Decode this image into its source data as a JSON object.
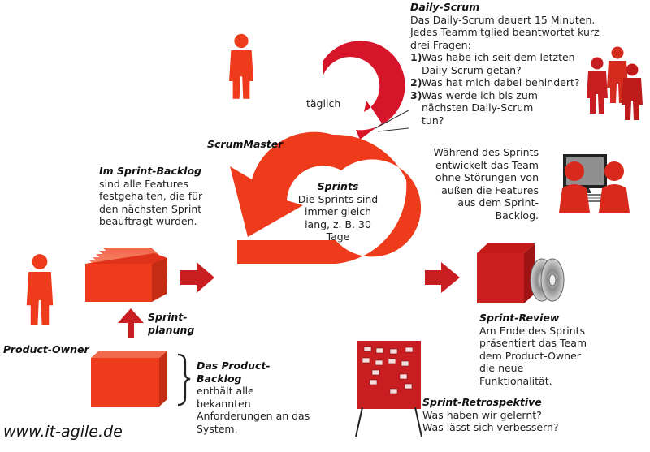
{
  "colors": {
    "accent": "#ee3b1c",
    "dark_red": "#c81e22",
    "loop_red": "#d6142a",
    "grey": "#9a9a9a"
  },
  "daily_scrum": {
    "title": "Daily-Scrum",
    "intro": "Das Daily-Scrum dauert 15 Minuten. Jedes Teammitglied beantwortet kurz drei Fragen:",
    "questions": [
      {
        "num": "1)",
        "text": "Was habe ich seit dem letzten Daily-Scrum getan?"
      },
      {
        "num": "2)",
        "text": "Was hat mich dabei behindert?"
      },
      {
        "num": "3)",
        "text": "Was werde ich bis zum nächsten Daily-Scrum tun?"
      }
    ],
    "loop_label": "täglich"
  },
  "scrum_master": {
    "label": "ScrumMaster"
  },
  "sprints": {
    "title": "Sprints",
    "text": "Die Sprints sind immer gleich lang, z. B. 30 Tage"
  },
  "team_note": {
    "text": "Während des Sprints entwickelt das Team ohne Störungen von außen die Features aus dem Sprint-Backlog."
  },
  "sprint_backlog": {
    "title": "Im Sprint-Backlog",
    "text": "sind alle Features festgehalten, die für den nächsten Sprint beauftragt wurden."
  },
  "sprint_planning": {
    "label_line1": "Sprint-",
    "label_line2": "planung"
  },
  "product_owner": {
    "label": "Product-Owner"
  },
  "product_backlog": {
    "title": "Das Product-Backlog",
    "text": "enthält alle bekannten Anforderungen an das System."
  },
  "sprint_review": {
    "title": "Sprint-Review",
    "text": "Am Ende des Sprints präsentiert das Team dem Product-Owner die neue Funktionalität."
  },
  "retrospective": {
    "title": "Sprint-Retrospektive",
    "q1": "Was haben wir gelernt?",
    "q2": "Was lässt sich verbessern?"
  },
  "footer": {
    "url": "www.it-agile.de"
  }
}
